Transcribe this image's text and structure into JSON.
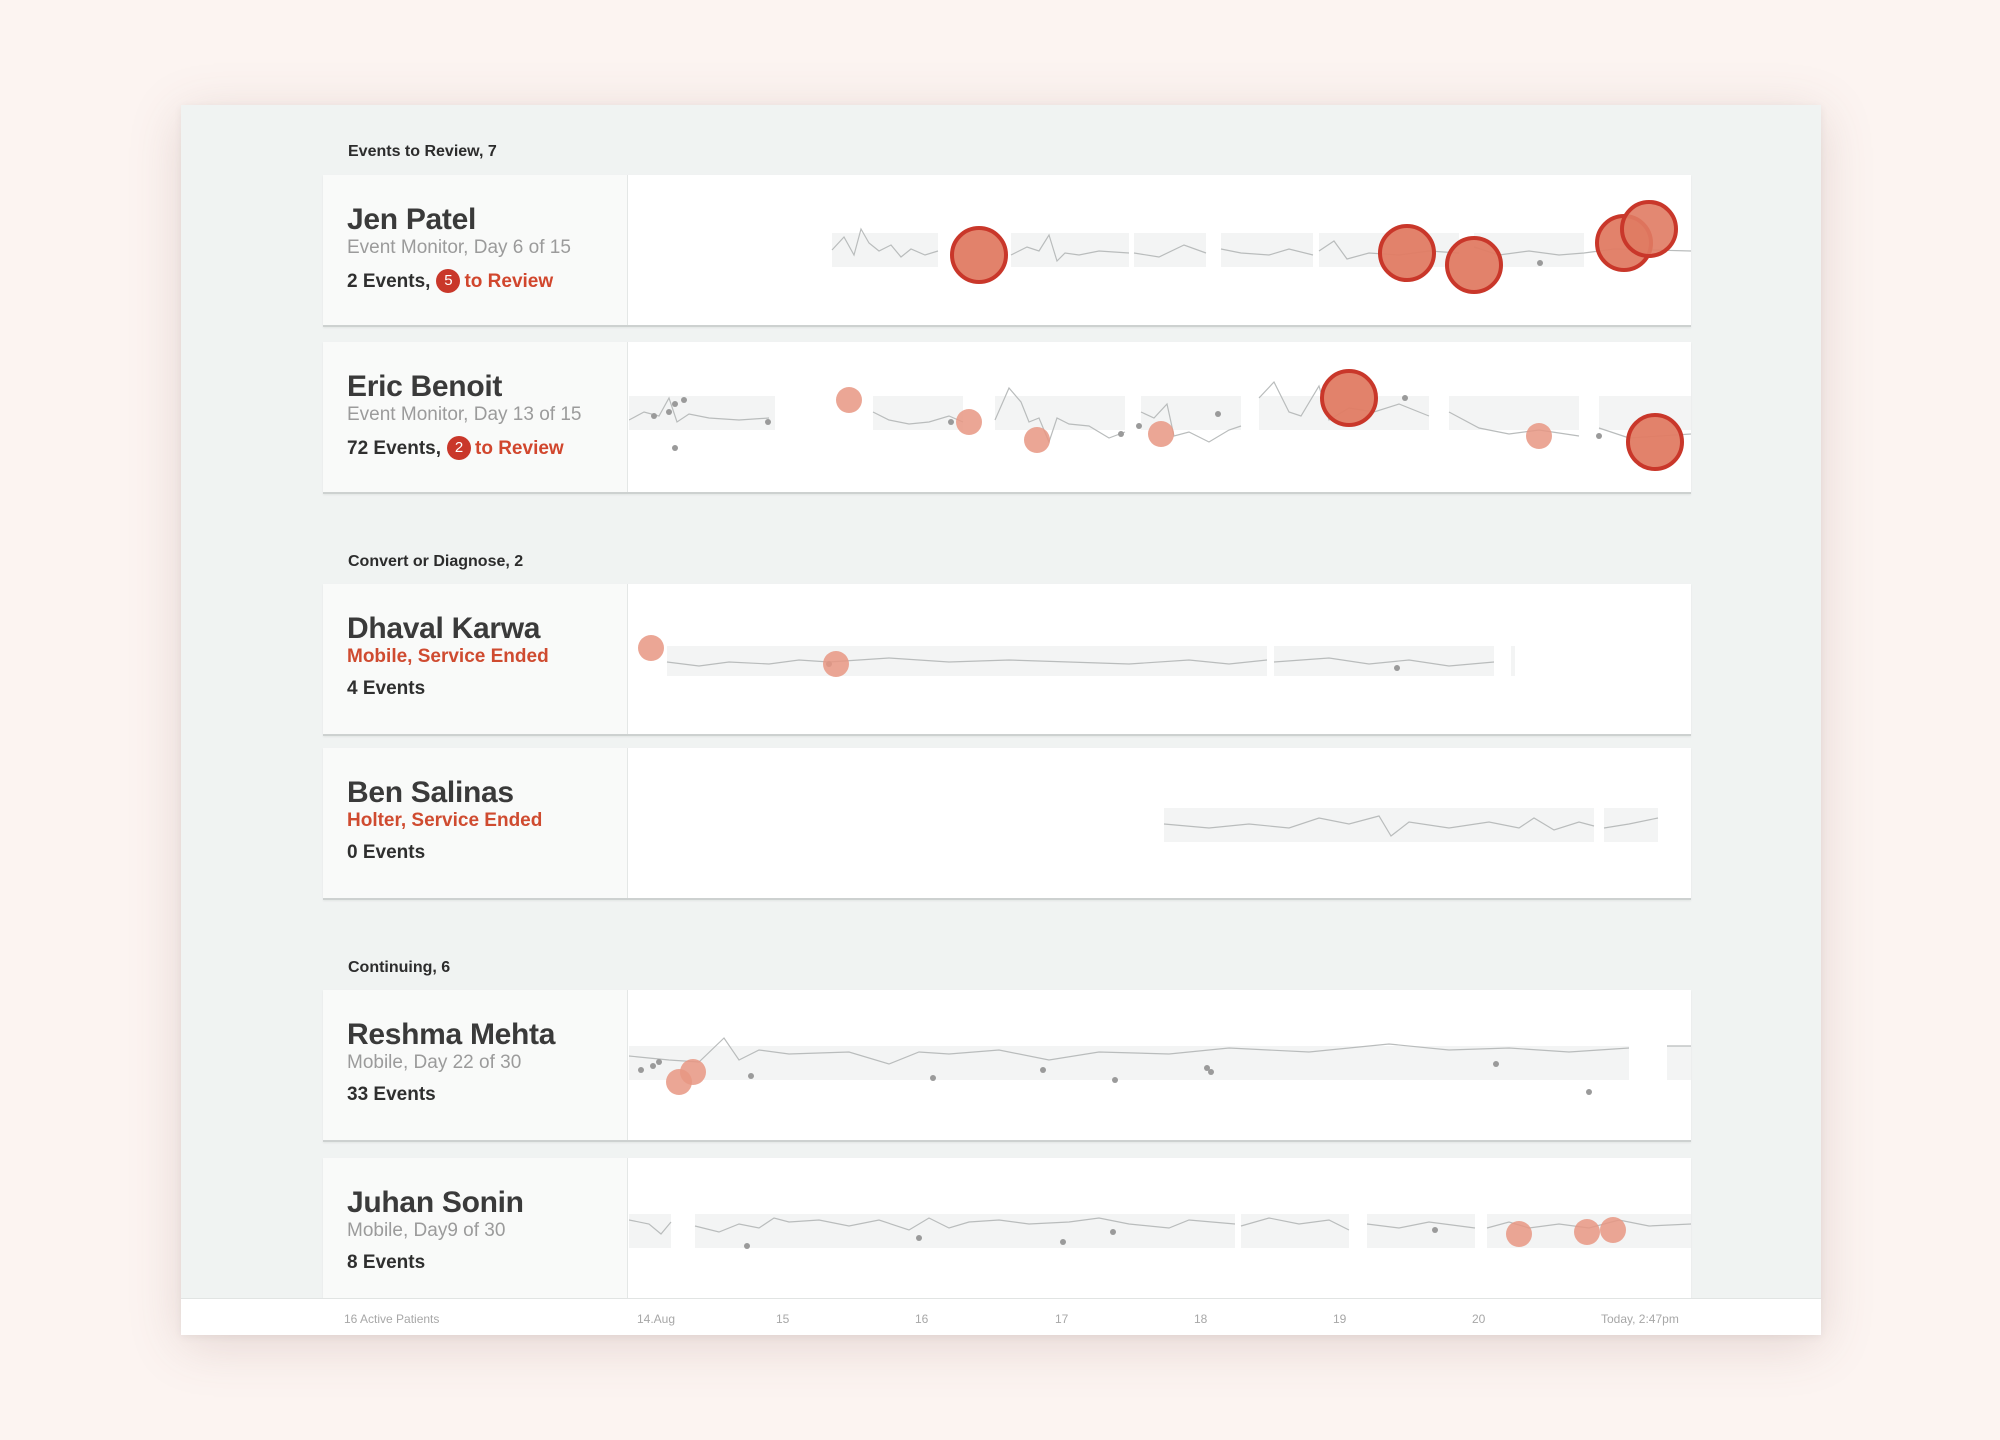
{
  "sections": [
    {
      "label": "Events to Review, 7",
      "patients": [
        {
          "name": "Jen Patel",
          "status": "Event Monitor, Day 6 of 15",
          "ended": false,
          "events_label": "2 Events,",
          "badge": "5",
          "review_label": "to Review"
        },
        {
          "name": "Eric Benoit",
          "status": "Event Monitor, Day 13 of 15",
          "ended": false,
          "events_label": "72 Events,",
          "badge": "2",
          "review_label": "to Review"
        }
      ]
    },
    {
      "label": "Convert or Diagnose, 2",
      "patients": [
        {
          "name": "Dhaval Karwa",
          "status": "Mobile, Service Ended",
          "ended": true,
          "events_label": "4 Events"
        },
        {
          "name": "Ben Salinas",
          "status": "Holter, Service Ended",
          "ended": true,
          "events_label": "0 Events"
        }
      ]
    },
    {
      "label": "Continuing, 6",
      "patients": [
        {
          "name": "Reshma Mehta",
          "status": "Mobile, Day 22 of 30",
          "ended": false,
          "events_label": "33 Events"
        },
        {
          "name": "Juhan Sonin",
          "status": "Mobile, Day9 of 30",
          "ended": false,
          "events_label": "8 Events"
        }
      ]
    }
  ],
  "footer": {
    "active_label": "16 Active Patients",
    "ticks": [
      "14.Aug",
      "15",
      "16",
      "17",
      "18",
      "19",
      "20",
      "Today, 2:47pm"
    ]
  },
  "colors": {
    "accent": "#d1462d",
    "badge": "#c9372a",
    "event_fill": "#e07b63",
    "event_ring": "#c9372a"
  },
  "icons": {
    "event_marker": "circle"
  }
}
